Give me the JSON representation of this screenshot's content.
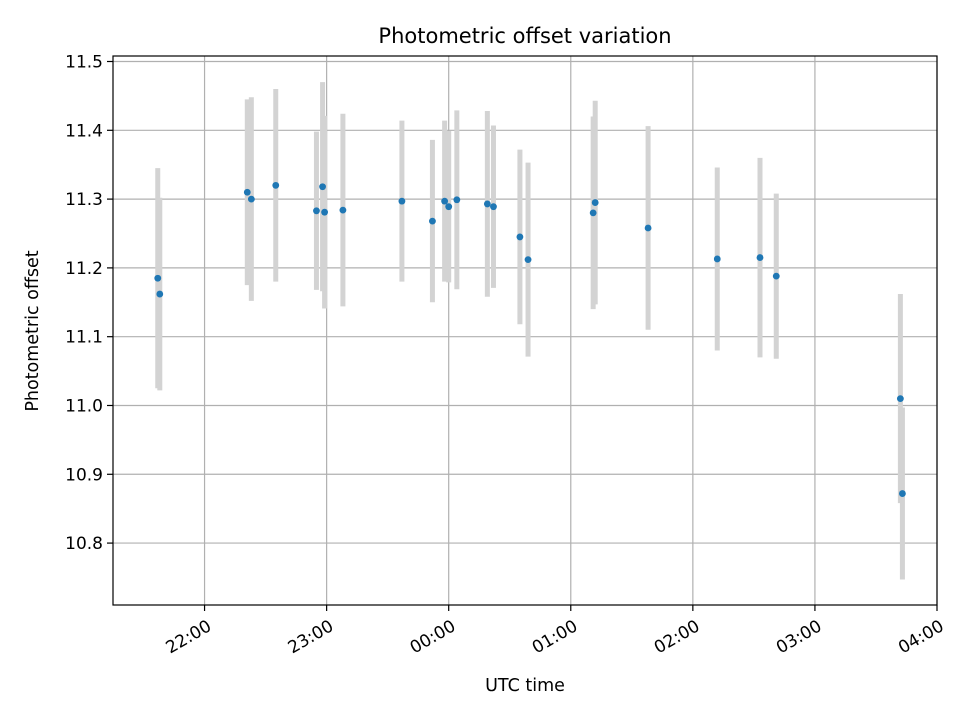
{
  "chart_data": {
    "type": "scatter",
    "title": "Photometric offset variation",
    "xlabel": "UTC time",
    "ylabel": "Photometric offset",
    "x_ticks": [
      "22:00",
      "23:00",
      "00:00",
      "01:00",
      "02:00",
      "03:00",
      "04:00"
    ],
    "y_ticks": [
      "10.8",
      "10.9",
      "11.0",
      "11.1",
      "11.2",
      "11.3",
      "11.4",
      "11.5"
    ],
    "ylim": [
      10.71,
      11.508
    ],
    "xlim": [
      "21:15",
      "04:00"
    ],
    "grid": true,
    "colors": {
      "point": "#1f77b4",
      "errorbar": "#d3d3d3",
      "grid": "#b0b0b0"
    },
    "points": [
      {
        "t": "21:37",
        "y": 11.185,
        "err": 0.16
      },
      {
        "t": "21:38",
        "y": 11.162,
        "err": 0.14
      },
      {
        "t": "22:21",
        "y": 11.31,
        "err": 0.135
      },
      {
        "t": "22:23",
        "y": 11.3,
        "err": 0.148
      },
      {
        "t": "22:35",
        "y": 11.32,
        "err": 0.14
      },
      {
        "t": "22:55",
        "y": 11.283,
        "err": 0.115
      },
      {
        "t": "22:58",
        "y": 11.318,
        "err": 0.152
      },
      {
        "t": "22:59",
        "y": 11.281,
        "err": 0.14
      },
      {
        "t": "23:08",
        "y": 11.284,
        "err": 0.14
      },
      {
        "t": "23:37",
        "y": 11.297,
        "err": 0.117
      },
      {
        "t": "23:52",
        "y": 11.268,
        "err": 0.118
      },
      {
        "t": "23:58",
        "y": 11.297,
        "err": 0.117
      },
      {
        "t": "00:00",
        "y": 11.289,
        "err": 0.11
      },
      {
        "t": "00:04",
        "y": 11.299,
        "err": 0.13
      },
      {
        "t": "00:19",
        "y": 11.293,
        "err": 0.135
      },
      {
        "t": "00:22",
        "y": 11.289,
        "err": 0.118
      },
      {
        "t": "00:35",
        "y": 11.245,
        "err": 0.127
      },
      {
        "t": "00:39",
        "y": 11.212,
        "err": 0.141
      },
      {
        "t": "01:11",
        "y": 11.28,
        "err": 0.14
      },
      {
        "t": "01:12",
        "y": 11.295,
        "err": 0.148
      },
      {
        "t": "01:38",
        "y": 11.258,
        "err": 0.148
      },
      {
        "t": "02:12",
        "y": 11.213,
        "err": 0.133
      },
      {
        "t": "02:33",
        "y": 11.215,
        "err": 0.145
      },
      {
        "t": "02:41",
        "y": 11.188,
        "err": 0.12
      },
      {
        "t": "03:42",
        "y": 11.01,
        "err": 0.152
      },
      {
        "t": "03:43",
        "y": 10.872,
        "err": 0.125
      }
    ]
  }
}
